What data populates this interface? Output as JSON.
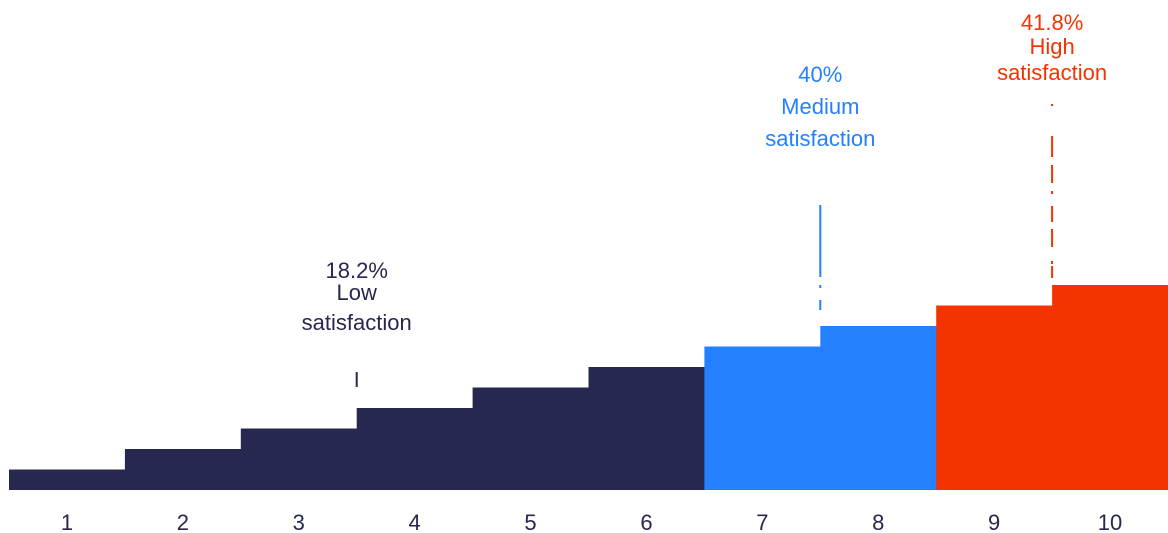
{
  "chart_data": {
    "type": "bar",
    "categories": [
      "1",
      "2",
      "3",
      "4",
      "5",
      "6",
      "7",
      "8",
      "9",
      "10"
    ],
    "values": [
      1,
      2,
      3,
      4,
      5,
      6,
      7,
      8,
      9,
      10
    ],
    "groups": [
      {
        "key": "low",
        "percent": "18.2%",
        "label_lines": [
          "Low",
          "satisfaction"
        ],
        "color": "#262850",
        "categories": [
          "1",
          "2",
          "3",
          "4",
          "5",
          "6"
        ]
      },
      {
        "key": "medium",
        "percent": "40%",
        "label_lines": [
          "Medium",
          "satisfaction"
        ],
        "color": "#2480FF",
        "categories": [
          "7",
          "8"
        ]
      },
      {
        "key": "high",
        "percent": "41.8%",
        "label_lines": [
          "High",
          "satisfaction"
        ],
        "color": "#F53300",
        "categories": [
          "9",
          "10"
        ]
      }
    ],
    "ylim": [
      0,
      10
    ],
    "grid": false,
    "legend": "none"
  }
}
